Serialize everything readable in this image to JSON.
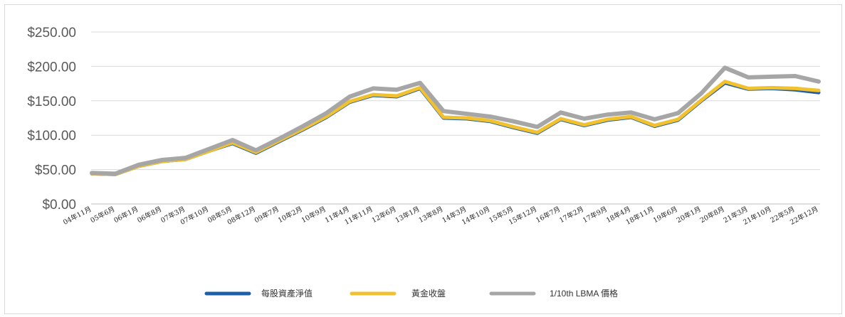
{
  "chart_data": {
    "type": "line",
    "title": "",
    "xlabel": "",
    "ylabel": "",
    "ylim": [
      0,
      250
    ],
    "y_ticks": [
      "$0.00",
      "$50.00",
      "$100.00",
      "$150.00",
      "$200.00",
      "$250.00"
    ],
    "grid": true,
    "legend_position": "bottom",
    "x": [
      "04年11月",
      "05年6月",
      "06年1月",
      "06年8月",
      "07年3月",
      "07年10月",
      "08年5月",
      "08年12月",
      "09年7月",
      "10年2月",
      "10年9月",
      "11年4月",
      "11年11月",
      "12年6月",
      "13年1月",
      "13年8月",
      "14年3月",
      "14年10月",
      "15年5月",
      "15年12月",
      "16年7月",
      "17年2月",
      "17年9月",
      "18年4月",
      "18年11月",
      "19年6月",
      "20年1月",
      "20年8月",
      "21年3月",
      "21年10月",
      "22年5月",
      "22年12月"
    ],
    "series": [
      {
        "name": "每股資產淨值",
        "color": "#1f5fa8",
        "values": [
          44,
          43,
          55,
          62,
          65,
          77,
          88,
          74,
          91,
          108,
          126,
          148,
          158,
          156,
          168,
          125,
          124,
          120,
          111,
          103,
          123,
          114,
          122,
          126,
          113,
          122,
          150,
          176,
          167,
          168,
          166,
          162
        ]
      },
      {
        "name": "黃金收盤",
        "color": "#f2c12e",
        "values": [
          44,
          43,
          55,
          62,
          65,
          77,
          89,
          75,
          92,
          109,
          127,
          149,
          159,
          157,
          169,
          126,
          125,
          121,
          112,
          104,
          124,
          115,
          123,
          127,
          114,
          123,
          151,
          178,
          168,
          169,
          168,
          165
        ]
      },
      {
        "name": "1/10th LBMA 價格",
        "color": "#a6a6a6",
        "values": [
          45,
          44,
          57,
          64,
          67,
          80,
          93,
          78,
          95,
          113,
          132,
          156,
          168,
          166,
          176,
          135,
          131,
          127,
          120,
          112,
          133,
          124,
          130,
          133,
          123,
          132,
          161,
          198,
          184,
          185,
          186,
          178
        ]
      }
    ]
  },
  "legend": {
    "items": [
      {
        "label": "每股資產淨值",
        "color": "#1f5fa8"
      },
      {
        "label": "黃金收盤",
        "color": "#f2c12e"
      },
      {
        "label": "1/10th LBMA 價格",
        "color": "#a6a6a6"
      }
    ]
  }
}
